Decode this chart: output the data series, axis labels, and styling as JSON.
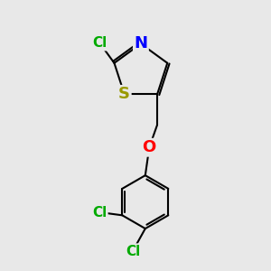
{
  "background_color": "#e8e8e8",
  "bond_color": "#000000",
  "bond_width": 1.5,
  "atoms": {
    "S": {
      "color": "#999900",
      "fontsize": 13
    },
    "N": {
      "color": "#0000ff",
      "fontsize": 13
    },
    "O": {
      "color": "#ff0000",
      "fontsize": 13
    },
    "Cl": {
      "color": "#00aa00",
      "fontsize": 11
    }
  },
  "figsize": [
    3.0,
    3.0
  ],
  "dpi": 100
}
